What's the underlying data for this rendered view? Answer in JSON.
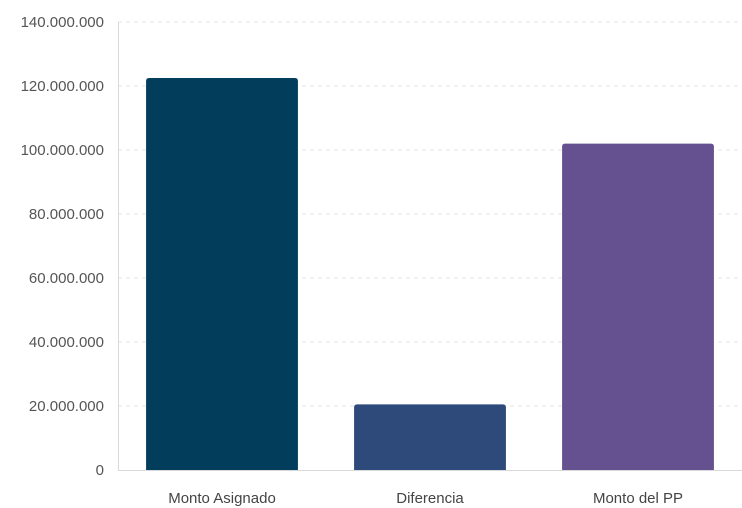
{
  "chart_data": {
    "type": "bar",
    "categories": [
      "Monto Asignado",
      "Diferencia",
      "Monto del PP"
    ],
    "values": [
      122500000,
      20500000,
      102000000
    ],
    "colors": [
      "#033d5c",
      "#2e4a7a",
      "#665190"
    ],
    "ylim": [
      0,
      140000000
    ],
    "yticks": [
      "0",
      "20.000.000",
      "40.000.000",
      "60.000.000",
      "80.000.000",
      "100.000.000",
      "120.000.000",
      "140.000.000"
    ],
    "ytick_values": [
      0,
      20000000,
      40000000,
      60000000,
      80000000,
      100000000,
      120000000,
      140000000
    ],
    "grid": true,
    "legend": "none"
  }
}
